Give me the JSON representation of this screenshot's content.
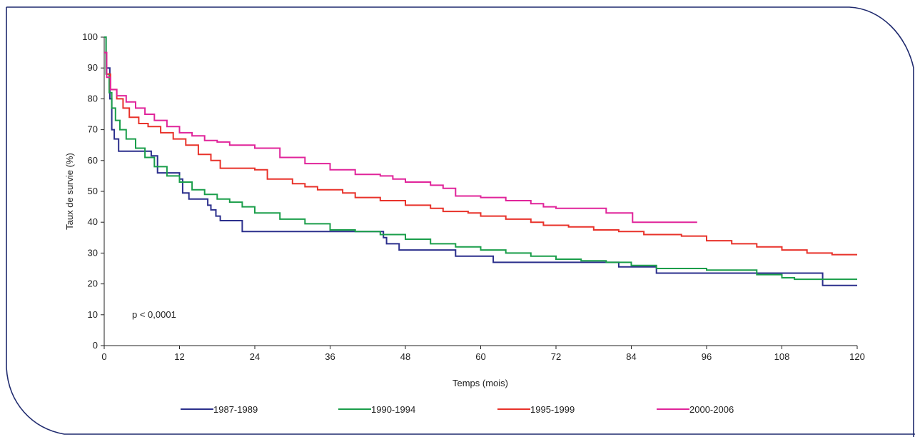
{
  "chart_data": {
    "type": "line",
    "title": "",
    "xlabel": "Temps (mois)",
    "ylabel": "Taux de survie (%)",
    "xlim": [
      0,
      120
    ],
    "ylim": [
      0,
      100
    ],
    "xticks": [
      0,
      12,
      24,
      36,
      48,
      60,
      72,
      84,
      96,
      108,
      120
    ],
    "yticks": [
      0,
      10,
      20,
      30,
      40,
      50,
      60,
      70,
      80,
      90,
      100
    ],
    "annotation": "p < 0,0001",
    "grid": false,
    "legend_position": "bottom",
    "frame_color": "#1f2a6e",
    "series": [
      {
        "name": "1987-1989",
        "color": "#2b2f8c",
        "points": [
          [
            0,
            100
          ],
          [
            0.3,
            90
          ],
          [
            0.9,
            80
          ],
          [
            1.2,
            70
          ],
          [
            1.6,
            67
          ],
          [
            2.3,
            63
          ],
          [
            7.5,
            61.5
          ],
          [
            8.5,
            56
          ],
          [
            12,
            54
          ],
          [
            12.5,
            49.5
          ],
          [
            13.5,
            47.5
          ],
          [
            16.5,
            45.5
          ],
          [
            17,
            44
          ],
          [
            17.8,
            42
          ],
          [
            18.5,
            40.5
          ],
          [
            22,
            37
          ],
          [
            44.5,
            35
          ],
          [
            45,
            33
          ],
          [
            47,
            31
          ],
          [
            56,
            29
          ],
          [
            62,
            27
          ],
          [
            82,
            25.5
          ],
          [
            88,
            23.5
          ],
          [
            114.5,
            19.5
          ],
          [
            120,
            19.5
          ]
        ]
      },
      {
        "name": "1990-1994",
        "color": "#1a9e4a",
        "points": [
          [
            0,
            100
          ],
          [
            0.3,
            88
          ],
          [
            0.8,
            82
          ],
          [
            1.2,
            77
          ],
          [
            1.8,
            73
          ],
          [
            2.5,
            70
          ],
          [
            3.5,
            67
          ],
          [
            5,
            64
          ],
          [
            6.5,
            61
          ],
          [
            8,
            58
          ],
          [
            10,
            55
          ],
          [
            12,
            53
          ],
          [
            14,
            50.5
          ],
          [
            16,
            49
          ],
          [
            18,
            47.5
          ],
          [
            20,
            46.5
          ],
          [
            22,
            45
          ],
          [
            24,
            43
          ],
          [
            28,
            41
          ],
          [
            32,
            39.5
          ],
          [
            36,
            37.5
          ],
          [
            40,
            37
          ],
          [
            44,
            36
          ],
          [
            48,
            34.5
          ],
          [
            52,
            33
          ],
          [
            56,
            32
          ],
          [
            60,
            31
          ],
          [
            64,
            30
          ],
          [
            68,
            29
          ],
          [
            72,
            28
          ],
          [
            76,
            27.5
          ],
          [
            80,
            27
          ],
          [
            84,
            26
          ],
          [
            88,
            25
          ],
          [
            96,
            24.5
          ],
          [
            104,
            23
          ],
          [
            108,
            22
          ],
          [
            110,
            21.5
          ],
          [
            120,
            21.5
          ]
        ]
      },
      {
        "name": "1995-1999",
        "color": "#e8322a",
        "points": [
          [
            0,
            95
          ],
          [
            0.4,
            88
          ],
          [
            1,
            83
          ],
          [
            2,
            80
          ],
          [
            3,
            77
          ],
          [
            4,
            74
          ],
          [
            5.5,
            72
          ],
          [
            7,
            71
          ],
          [
            9,
            69
          ],
          [
            11,
            67
          ],
          [
            13,
            65
          ],
          [
            15,
            62
          ],
          [
            17,
            60
          ],
          [
            18.5,
            57.5
          ],
          [
            22,
            57.5
          ],
          [
            24,
            57
          ],
          [
            26,
            54
          ],
          [
            30,
            52.5
          ],
          [
            32,
            51.5
          ],
          [
            34,
            50.5
          ],
          [
            38,
            49.5
          ],
          [
            40,
            48
          ],
          [
            44,
            47
          ],
          [
            48,
            45.5
          ],
          [
            52,
            44.5
          ],
          [
            54,
            43.5
          ],
          [
            58,
            43
          ],
          [
            60,
            42
          ],
          [
            64,
            41
          ],
          [
            68,
            40
          ],
          [
            70,
            39
          ],
          [
            74,
            38.5
          ],
          [
            78,
            37.5
          ],
          [
            82,
            37
          ],
          [
            86,
            36
          ],
          [
            92,
            35.5
          ],
          [
            96,
            34
          ],
          [
            100,
            33
          ],
          [
            104,
            32
          ],
          [
            108,
            31
          ],
          [
            112,
            30
          ],
          [
            116,
            29.5
          ],
          [
            120,
            29.5
          ]
        ]
      },
      {
        "name": "2000-2006",
        "color": "#e0249a",
        "points": [
          [
            0,
            95
          ],
          [
            0.4,
            87
          ],
          [
            1,
            83
          ],
          [
            2,
            81
          ],
          [
            3.5,
            79
          ],
          [
            5,
            77
          ],
          [
            6.5,
            75
          ],
          [
            8,
            73
          ],
          [
            10,
            71
          ],
          [
            12,
            69
          ],
          [
            14,
            68
          ],
          [
            16,
            66.5
          ],
          [
            18,
            66
          ],
          [
            20,
            65
          ],
          [
            24,
            64
          ],
          [
            28,
            61
          ],
          [
            32,
            59
          ],
          [
            36,
            57
          ],
          [
            40,
            55.5
          ],
          [
            44,
            55
          ],
          [
            46,
            54
          ],
          [
            48,
            53
          ],
          [
            52,
            52
          ],
          [
            54,
            51
          ],
          [
            56,
            48.5
          ],
          [
            60,
            48
          ],
          [
            64,
            47
          ],
          [
            68,
            46
          ],
          [
            70,
            45
          ],
          [
            72,
            44.5
          ],
          [
            76,
            44.5
          ],
          [
            80,
            43
          ],
          [
            84,
            43
          ],
          [
            84.2,
            40
          ],
          [
            94.5,
            40
          ]
        ]
      }
    ]
  }
}
